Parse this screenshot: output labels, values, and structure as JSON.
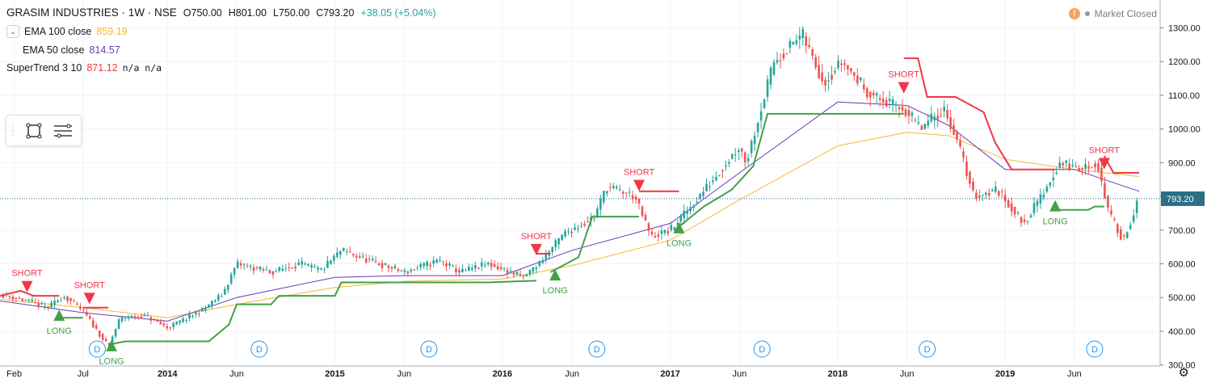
{
  "header": {
    "title": "GRASIM INDUSTRIES · 1W · NSE",
    "open": "O750.00",
    "high": "H801.00",
    "low": "L750.00",
    "close": "C793.20",
    "change": "+38.05 (+5.04%)"
  },
  "market_status": {
    "icon": "warning-icon",
    "label": "Market Closed"
  },
  "indicators": [
    {
      "label": "EMA 100 close",
      "value": "859.19",
      "color": "#f7b733"
    },
    {
      "label": "EMA 50 close",
      "value": "814.57",
      "color": "#673ab7"
    },
    {
      "label": "SuperTrend 3 10",
      "value": "871.12",
      "extra": "n/a n/a",
      "color": "#f23645"
    }
  ],
  "toolbox": {
    "icons": [
      "drag-grip-icon",
      "rectangle-tool-icon",
      "settings-list-icon"
    ]
  },
  "chart_data": {
    "type": "candlestick",
    "y_axis": {
      "ticks": [
        300,
        400,
        500,
        600,
        700,
        800,
        900,
        1000,
        1100,
        1200,
        1300
      ],
      "tick_labels": [
        "300.00",
        "400.00",
        "500.00",
        "600.00",
        "700.00",
        "800.00",
        "900.00",
        "1000.00",
        "1100.00",
        "1200.00",
        "1300.00"
      ],
      "ylim": [
        280,
        1330
      ],
      "position": "right"
    },
    "x_axis": {
      "tick_labels": [
        "Feb",
        "Jul",
        "2014",
        "Jun",
        "2015",
        "Jun",
        "2016",
        "Jun",
        "2017",
        "Jun",
        "2018",
        "Jun",
        "2019",
        "Jun"
      ],
      "tick_dates": [
        "2013-02-01",
        "2013-07-01",
        "2014-01-01",
        "2014-06-01",
        "2015-01-01",
        "2015-06-01",
        "2016-01-01",
        "2016-06-01",
        "2017-01-01",
        "2017-06-01",
        "2018-01-01",
        "2018-06-01",
        "2019-01-01",
        "2019-06-01"
      ],
      "xlim": [
        "2013-01-01",
        "2019-10-20"
      ]
    },
    "last_price": {
      "value": 793.2,
      "label": "793.20",
      "color": "#2a6f84"
    },
    "price_path": [
      [
        "2013-01-01",
        510
      ],
      [
        "2013-03-01",
        490
      ],
      [
        "2013-04-15",
        470
      ],
      [
        "2013-05-20",
        505
      ],
      [
        "2013-07-01",
        460
      ],
      [
        "2013-08-01",
        400
      ],
      [
        "2013-08-25",
        355
      ],
      [
        "2013-09-20",
        440
      ],
      [
        "2013-11-15",
        445
      ],
      [
        "2014-01-01",
        410
      ],
      [
        "2014-03-15",
        460
      ],
      [
        "2014-05-01",
        510
      ],
      [
        "2014-06-01",
        600
      ],
      [
        "2014-08-15",
        575
      ],
      [
        "2014-10-15",
        600
      ],
      [
        "2014-12-01",
        580
      ],
      [
        "2015-01-15",
        640
      ],
      [
        "2015-03-15",
        610
      ],
      [
        "2015-06-01",
        575
      ],
      [
        "2015-08-15",
        610
      ],
      [
        "2015-10-01",
        575
      ],
      [
        "2015-12-01",
        600
      ],
      [
        "2016-02-15",
        560
      ],
      [
        "2016-03-20",
        600
      ],
      [
        "2016-05-15",
        690
      ],
      [
        "2016-07-20",
        740
      ],
      [
        "2016-08-15",
        830
      ],
      [
        "2016-10-15",
        800
      ],
      [
        "2016-11-20",
        680
      ],
      [
        "2017-01-01",
        700
      ],
      [
        "2017-02-15",
        770
      ],
      [
        "2017-04-15",
        870
      ],
      [
        "2017-06-01",
        950
      ],
      [
        "2017-06-15",
        900
      ],
      [
        "2017-08-15",
        1200
      ],
      [
        "2017-10-15",
        1280
      ],
      [
        "2017-12-01",
        1140
      ],
      [
        "2018-01-10",
        1200
      ],
      [
        "2018-03-15",
        1100
      ],
      [
        "2018-05-01",
        1070
      ],
      [
        "2018-05-25",
        1060
      ],
      [
        "2018-07-01",
        1000
      ],
      [
        "2018-08-20",
        1060
      ],
      [
        "2018-09-15",
        980
      ],
      [
        "2018-10-25",
        800
      ],
      [
        "2018-12-15",
        820
      ],
      [
        "2019-02-10",
        720
      ],
      [
        "2019-03-20",
        800
      ],
      [
        "2019-05-01",
        900
      ],
      [
        "2019-06-15",
        880
      ],
      [
        "2019-07-20",
        900
      ],
      [
        "2019-08-15",
        750
      ],
      [
        "2019-09-15",
        670
      ],
      [
        "2019-10-20",
        793
      ]
    ],
    "series": [
      {
        "name": "EMA 100 close",
        "color": "#f7b733",
        "points": [
          [
            "2013-01-01",
            495
          ],
          [
            "2013-07-01",
            470
          ],
          [
            "2014-01-01",
            440
          ],
          [
            "2014-06-01",
            480
          ],
          [
            "2015-01-01",
            530
          ],
          [
            "2015-06-01",
            548
          ],
          [
            "2016-01-01",
            555
          ],
          [
            "2016-06-01",
            595
          ],
          [
            "2017-01-01",
            670
          ],
          [
            "2017-06-01",
            790
          ],
          [
            "2018-01-01",
            950
          ],
          [
            "2018-06-01",
            990
          ],
          [
            "2018-09-01",
            980
          ],
          [
            "2019-01-01",
            910
          ],
          [
            "2019-06-01",
            880
          ],
          [
            "2019-10-20",
            859
          ]
        ]
      },
      {
        "name": "EMA 50 close",
        "color": "#673ab7",
        "points": [
          [
            "2013-01-01",
            490
          ],
          [
            "2013-07-01",
            455
          ],
          [
            "2014-01-01",
            430
          ],
          [
            "2014-06-01",
            500
          ],
          [
            "2015-01-01",
            560
          ],
          [
            "2015-06-01",
            565
          ],
          [
            "2016-01-01",
            565
          ],
          [
            "2016-06-01",
            640
          ],
          [
            "2017-01-01",
            720
          ],
          [
            "2017-06-01",
            870
          ],
          [
            "2018-01-01",
            1080
          ],
          [
            "2018-06-01",
            1070
          ],
          [
            "2018-09-01",
            1010
          ],
          [
            "2019-01-01",
            880
          ],
          [
            "2019-06-01",
            880
          ],
          [
            "2019-10-20",
            815
          ]
        ]
      },
      {
        "name": "SuperTrend 3 10",
        "up_color": "#43a047",
        "down_color": "#f23645",
        "segments": [
          {
            "trend": "down",
            "points": [
              [
                "2013-01-01",
                505
              ],
              [
                "2013-02-15",
                520
              ],
              [
                "2013-03-15",
                505
              ],
              [
                "2013-05-10",
                505
              ]
            ]
          },
          {
            "trend": "up",
            "points": [
              [
                "2013-05-10",
                440
              ],
              [
                "2013-07-01",
                440
              ]
            ]
          },
          {
            "trend": "down",
            "points": [
              [
                "2013-07-01",
                470
              ],
              [
                "2013-08-25",
                470
              ]
            ]
          },
          {
            "trend": "up",
            "points": [
              [
                "2013-08-25",
                360
              ],
              [
                "2013-10-01",
                370
              ],
              [
                "2014-04-01",
                370
              ],
              [
                "2014-05-15",
                420
              ],
              [
                "2014-06-01",
                480
              ],
              [
                "2014-08-15",
                480
              ],
              [
                "2014-09-01",
                505
              ],
              [
                "2015-01-01",
                505
              ],
              [
                "2015-01-15",
                545
              ],
              [
                "2015-12-01",
                545
              ],
              [
                "2016-03-15",
                550
              ]
            ]
          },
          {
            "trend": "down",
            "points": [
              [
                "2016-03-15",
                630
              ],
              [
                "2016-04-15",
                630
              ]
            ]
          },
          {
            "trend": "up",
            "points": [
              [
                "2016-04-15",
                575
              ],
              [
                "2016-06-15",
                620
              ],
              [
                "2016-07-15",
                740
              ],
              [
                "2016-10-25",
                740
              ]
            ]
          },
          {
            "trend": "down",
            "points": [
              [
                "2016-10-25",
                815
              ],
              [
                "2017-01-20",
                815
              ]
            ]
          },
          {
            "trend": "up",
            "points": [
              [
                "2017-01-20",
                710
              ],
              [
                "2017-03-15",
                770
              ],
              [
                "2017-05-15",
                820
              ],
              [
                "2017-07-01",
                890
              ],
              [
                "2017-08-01",
                1045
              ],
              [
                "2018-05-25",
                1045
              ]
            ]
          },
          {
            "trend": "down",
            "points": [
              [
                "2018-05-25",
                1210
              ],
              [
                "2018-06-25",
                1210
              ],
              [
                "2018-07-15",
                1095
              ],
              [
                "2018-09-15",
                1095
              ],
              [
                "2018-11-15",
                1050
              ],
              [
                "2018-12-10",
                960
              ],
              [
                "2019-01-15",
                880
              ],
              [
                "2019-04-20",
                880
              ]
            ]
          },
          {
            "trend": "up",
            "points": [
              [
                "2019-04-20",
                760
              ],
              [
                "2019-07-01",
                760
              ],
              [
                "2019-07-15",
                770
              ],
              [
                "2019-08-05",
                770
              ]
            ]
          },
          {
            "trend": "down",
            "points": [
              [
                "2019-08-05",
                920
              ],
              [
                "2019-08-25",
                870
              ],
              [
                "2019-10-20",
                870
              ]
            ]
          }
        ]
      }
    ],
    "signals": [
      {
        "type": "short",
        "label": "SHORT",
        "date": "2013-03-01",
        "price": 530
      },
      {
        "type": "long",
        "label": "LONG",
        "date": "2013-05-10",
        "price": 445
      },
      {
        "type": "short",
        "label": "SHORT",
        "date": "2013-07-15",
        "price": 495
      },
      {
        "type": "long",
        "label": "LONG",
        "date": "2013-09-01",
        "price": 355
      },
      {
        "type": "short",
        "label": "SHORT",
        "date": "2016-03-15",
        "price": 640
      },
      {
        "type": "long",
        "label": "LONG",
        "date": "2016-04-25",
        "price": 565
      },
      {
        "type": "short",
        "label": "SHORT",
        "date": "2016-10-25",
        "price": 830
      },
      {
        "type": "long",
        "label": "LONG",
        "date": "2017-01-20",
        "price": 705
      },
      {
        "type": "short",
        "label": "SHORT",
        "date": "2018-05-25",
        "price": 1120
      },
      {
        "type": "long",
        "label": "LONG",
        "date": "2019-04-20",
        "price": 770
      },
      {
        "type": "short",
        "label": "SHORT",
        "date": "2019-08-05",
        "price": 895
      }
    ],
    "dividend_markers": {
      "label": "D",
      "dates": [
        "2013-08-01",
        "2014-07-20",
        "2015-07-25",
        "2016-07-25",
        "2017-07-20",
        "2018-07-15",
        "2019-07-15"
      ]
    }
  }
}
